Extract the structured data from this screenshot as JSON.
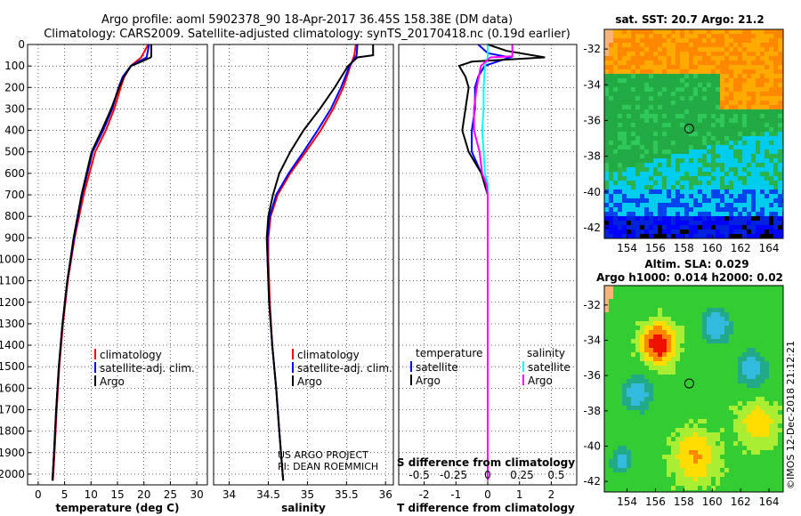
{
  "header": {
    "line1": "Argo profile: aoml 5902378_90 18-Apr-2017 36.45S 158.38E (DM data)",
    "line2": "Climatology: CARS2009. Satellite-adjusted climatology: synTS_20170418.nc (0.19d earlier)"
  },
  "colors": {
    "climatology": "#ff0000",
    "satellite": "#0000ff",
    "argo": "#000000",
    "sal_satellite": "#00ffff",
    "sal_argo": "#ff00ff"
  },
  "depth_axis": {
    "ylim": [
      0,
      2050
    ],
    "ticks": [
      "0",
      "100",
      "200",
      "300",
      "400",
      "500",
      "600",
      "700",
      "800",
      "900",
      "1000",
      "1100",
      "1200",
      "1300",
      "1400",
      "1500",
      "1600",
      "1700",
      "1800",
      "1900",
      "2000"
    ]
  },
  "chart_data": [
    {
      "type": "line",
      "id": "temperature",
      "xlabel": "temperature (deg C)",
      "xlim": [
        -2,
        32
      ],
      "xticks": [
        "0",
        "5",
        "10",
        "15",
        "20",
        "25",
        "30"
      ],
      "xtick_values": [
        0,
        5,
        10,
        15,
        20,
        25,
        30
      ],
      "legend": [
        "climatology",
        "satellite-adj. clim.",
        "Argo"
      ],
      "series": [
        {
          "name": "climatology",
          "depth": [
            0,
            60,
            100,
            150,
            200,
            300,
            400,
            500,
            700,
            900,
            1100,
            1300,
            1500,
            1700,
            1900,
            2030
          ],
          "values": [
            20.8,
            19.5,
            17.5,
            16.3,
            15.6,
            14.4,
            12.8,
            10.8,
            8.6,
            6.9,
            5.6,
            4.7,
            4.0,
            3.5,
            3.1,
            2.8
          ]
        },
        {
          "name": "satellite-adj. clim.",
          "depth": [
            0,
            60,
            100,
            150,
            200,
            300,
            400,
            500,
            700,
            900,
            1100,
            1300,
            1500,
            1700,
            1900,
            2030
          ],
          "values": [
            21.0,
            20.5,
            17.5,
            16.0,
            15.2,
            14.0,
            12.3,
            10.3,
            8.3,
            6.8,
            5.5,
            4.6,
            3.9,
            3.4,
            3.0,
            2.7
          ]
        },
        {
          "name": "Argo",
          "depth": [
            0,
            55,
            60,
            80,
            100,
            150,
            200,
            300,
            400,
            500,
            700,
            900,
            1100,
            1300,
            1500,
            1700,
            1900,
            2030
          ],
          "values": [
            21.4,
            21.4,
            21.3,
            19.5,
            17.6,
            16.2,
            15.3,
            13.8,
            12.0,
            10.1,
            8.2,
            6.7,
            5.5,
            4.6,
            3.9,
            3.4,
            3.0,
            2.7
          ]
        }
      ]
    },
    {
      "type": "line",
      "id": "salinity",
      "xlabel": "salinity",
      "xlim": [
        33.8,
        36.1
      ],
      "xticks": [
        "34",
        "34.5",
        "35",
        "35.5",
        "36"
      ],
      "xtick_values": [
        34,
        34.5,
        35,
        35.5,
        36
      ],
      "legend": [
        "climatology",
        "satellite-adj. clim.",
        "Argo"
      ],
      "annotation": [
        "US ARGO PROJECT",
        "PI: DEAN ROEMMICH"
      ],
      "series": [
        {
          "name": "climatology",
          "depth": [
            0,
            50,
            100,
            200,
            300,
            400,
            500,
            600,
            700,
            800,
            900,
            1000,
            1200,
            1400,
            1600,
            1800,
            2030
          ],
          "values": [
            35.62,
            35.6,
            35.55,
            35.46,
            35.33,
            35.17,
            34.98,
            34.78,
            34.62,
            34.53,
            34.5,
            34.5,
            34.52,
            34.55,
            34.6,
            34.64,
            34.69
          ]
        },
        {
          "name": "satellite-adj. clim.",
          "depth": [
            0,
            50,
            100,
            200,
            300,
            400,
            500,
            600,
            700,
            800,
            900,
            1000,
            1200,
            1400,
            1600,
            1800,
            2030
          ],
          "values": [
            35.64,
            35.63,
            35.54,
            35.43,
            35.3,
            35.13,
            34.95,
            34.76,
            34.6,
            34.52,
            34.49,
            34.49,
            34.51,
            34.55,
            34.6,
            34.64,
            34.69
          ]
        },
        {
          "name": "Argo",
          "depth": [
            0,
            50,
            60,
            100,
            200,
            300,
            400,
            500,
            600,
            700,
            800,
            900,
            1000,
            1200,
            1400,
            1600,
            1800,
            2030
          ],
          "values": [
            35.84,
            35.84,
            35.64,
            35.52,
            35.35,
            35.16,
            34.95,
            34.78,
            34.64,
            34.56,
            34.5,
            34.48,
            34.49,
            34.51,
            34.55,
            34.6,
            34.64,
            34.69
          ]
        }
      ]
    },
    {
      "type": "line",
      "id": "difference",
      "xlabel": "T difference from climatology",
      "xlabel2": "S difference from climatology",
      "xlim": [
        -2.8,
        2.8
      ],
      "xticks": [
        "-2",
        "-1",
        "0",
        "1",
        "2"
      ],
      "xtick_values": [
        -2,
        -1,
        0,
        1,
        2
      ],
      "sticks": [
        "-0.5",
        "-0.25",
        "0",
        "0.25",
        "0.5"
      ],
      "stick_values": [
        -0.5,
        -0.25,
        0,
        0.25,
        0.5
      ],
      "legend_temperature_title": "temperature",
      "legend_temperature": [
        "satellite",
        "Argo"
      ],
      "legend_salinity_title": "salinity",
      "legend_salinity": [
        "satellite",
        "Argo"
      ],
      "series": [
        {
          "name": "T satellite",
          "depth": [
            0,
            40,
            60,
            100,
            150,
            200,
            300,
            400,
            500,
            600,
            650
          ],
          "values": [
            -0.3,
            0.0,
            0.7,
            -0.1,
            -0.3,
            -0.4,
            -0.4,
            -0.5,
            -0.5,
            -0.2,
            0.0
          ]
        },
        {
          "name": "T Argo",
          "depth": [
            0,
            30,
            60,
            80,
            100,
            150,
            200,
            300,
            400,
            500,
            600,
            650,
            700,
            900,
            1100,
            1300,
            1500,
            1700,
            1900,
            2030
          ],
          "values": [
            0.0,
            0.6,
            1.8,
            -0.5,
            -0.9,
            -0.7,
            -0.6,
            -0.7,
            -0.8,
            -0.6,
            -0.2,
            -0.1,
            0.0,
            0.0,
            0.0,
            0.0,
            0.0,
            0.0,
            0.0,
            0.0
          ]
        },
        {
          "name": "S satellite",
          "depth": [
            0,
            60,
            100,
            200,
            300,
            400,
            500,
            600,
            650,
            2030
          ],
          "values": [
            0.0,
            0.0,
            -0.02,
            -0.03,
            -0.03,
            -0.04,
            -0.03,
            -0.02,
            0.0,
            0.0
          ]
        },
        {
          "name": "S Argo",
          "depth": [
            0,
            55,
            60,
            100,
            200,
            300,
            400,
            500,
            600,
            650,
            700,
            2030
          ],
          "values": [
            0.18,
            0.18,
            0.02,
            -0.05,
            -0.08,
            -0.1,
            -0.1,
            -0.06,
            -0.04,
            -0.01,
            0.0,
            0.0
          ]
        }
      ]
    },
    {
      "type": "heatmap",
      "id": "sst_map",
      "title": "sat. SST: 20.7 Argo: 21.2",
      "xticks": [
        "154",
        "156",
        "158",
        "160",
        "162",
        "164"
      ],
      "xtick_values": [
        154,
        156,
        158,
        160,
        162,
        164
      ],
      "yticks": [
        "-32",
        "-34",
        "-36",
        "-38",
        "-40",
        "-42"
      ],
      "ytick_values": [
        -32,
        -34,
        -36,
        -38,
        -40,
        -42
      ],
      "xlim": [
        152.4,
        165
      ],
      "ylim": [
        -42.6,
        -30.9
      ],
      "marker": {
        "lon": 158.38,
        "lat": -36.45
      }
    },
    {
      "type": "heatmap",
      "id": "sla_map",
      "title": "Altim. SLA: 0.029",
      "subtitle": "Argo h1000: 0.014 h2000: 0.02",
      "xticks": [
        "154",
        "156",
        "158",
        "160",
        "162",
        "164"
      ],
      "xtick_values": [
        154,
        156,
        158,
        160,
        162,
        164
      ],
      "yticks": [
        "-32",
        "-34",
        "-36",
        "-38",
        "-40",
        "-42"
      ],
      "ytick_values": [
        -32,
        -34,
        -36,
        -38,
        -40,
        -42
      ],
      "xlim": [
        152.4,
        165
      ],
      "ylim": [
        -42.6,
        -30.9
      ],
      "marker": {
        "lon": 158.38,
        "lat": -36.45
      }
    }
  ],
  "footer": {
    "credit": "©IMOS 12-Dec-2018 21:12:21"
  }
}
